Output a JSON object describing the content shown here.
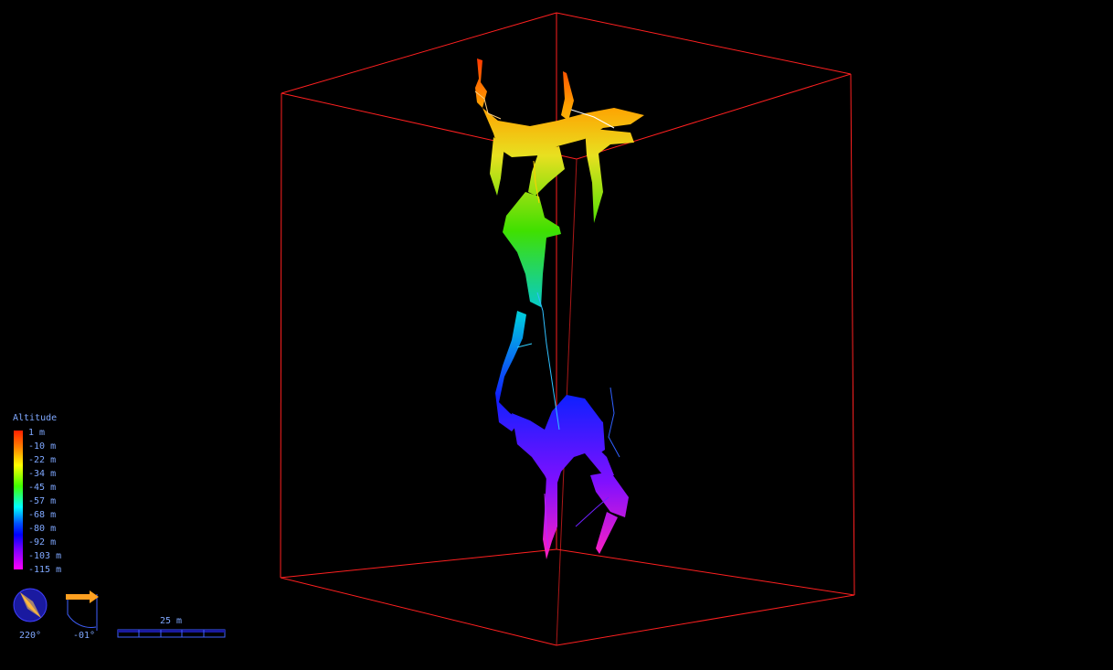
{
  "legend": {
    "title": "Altitude",
    "labels": [
      "1 m",
      "-10 m",
      "-22 m",
      "-34 m",
      "-45 m",
      "-57 m",
      "-68 m",
      "-80 m",
      "-92 m",
      "-103 m",
      "-115 m"
    ]
  },
  "compass": {
    "bearing": "220°"
  },
  "clino": {
    "tilt": "-01°"
  },
  "scale": {
    "label": "25 m"
  },
  "colors": {
    "box": "#ff2020",
    "hud_text": "#7fa8ff",
    "compass_fill": "#1a1aa0",
    "compass_needle": "#ffa020"
  }
}
